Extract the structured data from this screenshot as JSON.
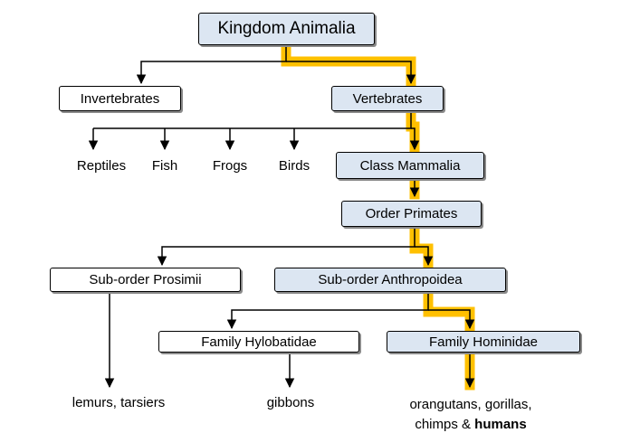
{
  "diagram": {
    "root": "Kingdom Animalia",
    "invertebrates": "Invertebrates",
    "vertebrates": "Vertebrates",
    "reptiles": "Reptiles",
    "fish": "Fish",
    "frogs": "Frogs",
    "birds": "Birds",
    "mammalia": "Class Mammalia",
    "primates": "Order Primates",
    "prosimii": "Sub-order Prosimii",
    "anthropoidea": "Sub-order Anthropoidea",
    "hylobatidae": "Family Hylobatidae",
    "hominidae": "Family Hominidae",
    "lemurs": "lemurs, tarsiers",
    "gibbons": "gibbons",
    "apes_line1": "orangutans, gorillas,",
    "apes_line2_prefix": "chimps & ",
    "apes_line2_bold": "humans"
  },
  "colors": {
    "highlight_path": "#ffc000",
    "highlighted_box_fill": "#dce6f2",
    "plain_box_fill": "#ffffff",
    "connector": "#000000"
  }
}
